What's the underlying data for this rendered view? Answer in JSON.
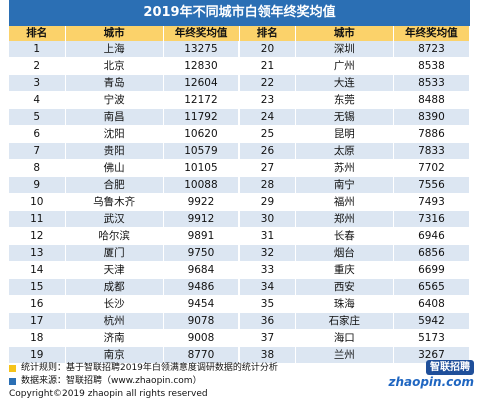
{
  "title": "2019年不同城市白领年终奖均值",
  "headers": [
    "排名",
    "城市",
    "年终奖均值",
    "排名",
    "城市",
    "年终奖均值"
  ],
  "rows": [
    [
      "1",
      "上海",
      "13275",
      "20",
      "深圳",
      "8723"
    ],
    [
      "2",
      "北京",
      "12830",
      "21",
      "广州",
      "8538"
    ],
    [
      "3",
      "青岛",
      "12604",
      "22",
      "大连",
      "8533"
    ],
    [
      "4",
      "宁波",
      "12172",
      "23",
      "东莞",
      "8488"
    ],
    [
      "5",
      "南昌",
      "11792",
      "24",
      "无锡",
      "8390"
    ],
    [
      "6",
      "沈阳",
      "10620",
      "25",
      "昆明",
      "7886"
    ],
    [
      "7",
      "贵阳",
      "10579",
      "26",
      "太原",
      "7833"
    ],
    [
      "8",
      "佛山",
      "10105",
      "27",
      "苏州",
      "7702"
    ],
    [
      "9",
      "合肥",
      "10088",
      "28",
      "南宁",
      "7556"
    ],
    [
      "10",
      "乌鲁木齐",
      "9922",
      "29",
      "福州",
      "7493"
    ],
    [
      "11",
      "武汉",
      "9912",
      "30",
      "郑州",
      "7316"
    ],
    [
      "12",
      "哈尔滨",
      "9891",
      "31",
      "长春",
      "6946"
    ],
    [
      "13",
      "厦门",
      "9750",
      "32",
      "烟台",
      "6856"
    ],
    [
      "14",
      "天津",
      "9684",
      "33",
      "重庆",
      "6699"
    ],
    [
      "15",
      "成都",
      "9486",
      "34",
      "西安",
      "6565"
    ],
    [
      "16",
      "长沙",
      "9454",
      "35",
      "珠海",
      "6408"
    ],
    [
      "17",
      "杭州",
      "9078",
      "36",
      "石家庄",
      "5942"
    ],
    [
      "18",
      "济南",
      "9008",
      "37",
      "海口",
      "5173"
    ],
    [
      "19",
      "南京",
      "8770",
      "38",
      "兰州",
      "3267"
    ]
  ],
  "footer": {
    "method": "统计规则：基于智联招聘2019年白领满意度调研数据的统计分析",
    "source": "数据来源：智联招聘（www.zhaopin.com）",
    "copyright": "Copyright©2019 zhaopin all rights reserved"
  },
  "logo": {
    "cn": "智联招聘",
    "en": "zhaopin.com"
  },
  "colors": {
    "title_bg": "#2b6fb4",
    "header_bg": "#fbd26a",
    "stripe": "#dce6f2",
    "footer_yellow": "#f5c31a",
    "footer_blue": "#2b6fb4"
  },
  "chart_data": {
    "type": "table",
    "title": "2019年不同城市白领年终奖均值",
    "columns": [
      "排名",
      "城市",
      "年终奖均值"
    ],
    "records": [
      {
        "rank": 1,
        "city": "上海",
        "value": 13275
      },
      {
        "rank": 2,
        "city": "北京",
        "value": 12830
      },
      {
        "rank": 3,
        "city": "青岛",
        "value": 12604
      },
      {
        "rank": 4,
        "city": "宁波",
        "value": 12172
      },
      {
        "rank": 5,
        "city": "南昌",
        "value": 11792
      },
      {
        "rank": 6,
        "city": "沈阳",
        "value": 10620
      },
      {
        "rank": 7,
        "city": "贵阳",
        "value": 10579
      },
      {
        "rank": 8,
        "city": "佛山",
        "value": 10105
      },
      {
        "rank": 9,
        "city": "合肥",
        "value": 10088
      },
      {
        "rank": 10,
        "city": "乌鲁木齐",
        "value": 9922
      },
      {
        "rank": 11,
        "city": "武汉",
        "value": 9912
      },
      {
        "rank": 12,
        "city": "哈尔滨",
        "value": 9891
      },
      {
        "rank": 13,
        "city": "厦门",
        "value": 9750
      },
      {
        "rank": 14,
        "city": "天津",
        "value": 9684
      },
      {
        "rank": 15,
        "city": "成都",
        "value": 9486
      },
      {
        "rank": 16,
        "city": "长沙",
        "value": 9454
      },
      {
        "rank": 17,
        "city": "杭州",
        "value": 9078
      },
      {
        "rank": 18,
        "city": "济南",
        "value": 9008
      },
      {
        "rank": 19,
        "city": "南京",
        "value": 8770
      },
      {
        "rank": 20,
        "city": "深圳",
        "value": 8723
      },
      {
        "rank": 21,
        "city": "广州",
        "value": 8538
      },
      {
        "rank": 22,
        "city": "大连",
        "value": 8533
      },
      {
        "rank": 23,
        "city": "东莞",
        "value": 8488
      },
      {
        "rank": 24,
        "city": "无锡",
        "value": 8390
      },
      {
        "rank": 25,
        "city": "昆明",
        "value": 7886
      },
      {
        "rank": 26,
        "city": "太原",
        "value": 7833
      },
      {
        "rank": 27,
        "city": "苏州",
        "value": 7702
      },
      {
        "rank": 28,
        "city": "南宁",
        "value": 7556
      },
      {
        "rank": 29,
        "city": "福州",
        "value": 7493
      },
      {
        "rank": 30,
        "city": "郑州",
        "value": 7316
      },
      {
        "rank": 31,
        "city": "长春",
        "value": 6946
      },
      {
        "rank": 32,
        "city": "烟台",
        "value": 6856
      },
      {
        "rank": 33,
        "city": "重庆",
        "value": 6699
      },
      {
        "rank": 34,
        "city": "西安",
        "value": 6565
      },
      {
        "rank": 35,
        "city": "珠海",
        "value": 6408
      },
      {
        "rank": 36,
        "city": "石家庄",
        "value": 5942
      },
      {
        "rank": 37,
        "city": "海口",
        "value": 5173
      },
      {
        "rank": 38,
        "city": "兰州",
        "value": 3267
      }
    ]
  }
}
